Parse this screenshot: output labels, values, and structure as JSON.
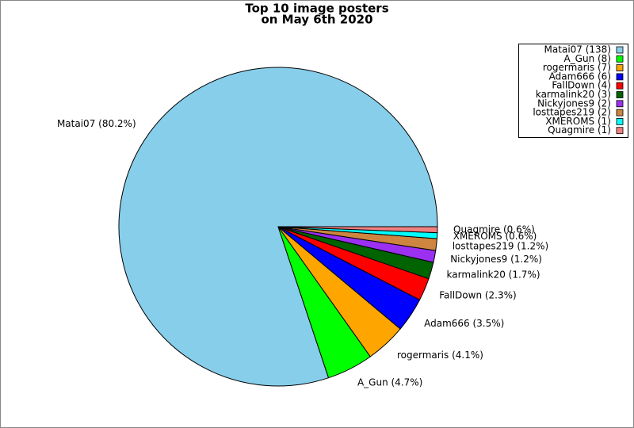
{
  "chart_data": {
    "type": "pie",
    "title_lines": [
      "Top 10 image posters",
      "on May 6th 2020"
    ],
    "categories": [
      "Matai07 (138)",
      "A_Gun (8)",
      "rogermaris (7)",
      "Adam666 (6)",
      "FallDown (4)",
      "karmalink20 (3)",
      "Nickyjones9 (2)",
      "losttapes219 (2)",
      "XMEROMS (1)",
      "Quagmire (1)"
    ],
    "values": [
      80.2,
      4.7,
      4.1,
      3.5,
      2.3,
      1.7,
      1.2,
      1.2,
      0.6,
      0.6
    ],
    "value_labels": [
      "Matai07 (80.2%)",
      "A_Gun (4.7%)",
      "rogermaris (4.1%)",
      "Adam666 (3.5%)",
      "FallDown (2.3%)",
      "karmalink20 (1.7%)",
      "Nickyjones9 (1.2%)",
      "losttapes219 (1.2%)",
      "XMEROMS (0.6%)",
      "Quagmire (0.6%)"
    ],
    "colors": [
      "#87ceeb",
      "#00ff00",
      "#ffa500",
      "#0000ff",
      "#ff0000",
      "#006400",
      "#9b30f0",
      "#cd853f",
      "#00ffff",
      "#f08080"
    ],
    "legend": "upper right"
  }
}
